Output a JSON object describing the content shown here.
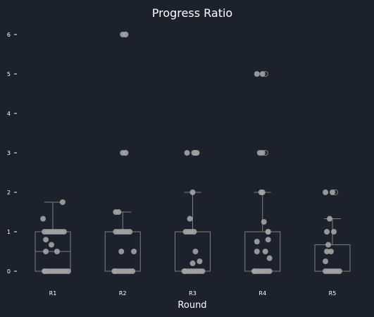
{
  "chart_data": {
    "type": "box",
    "title": "Progress Ratio",
    "xlabel": "Round",
    "ylabel": "",
    "ylim": [
      -0.25,
      6.3
    ],
    "yticks": [
      "0",
      "1",
      "2",
      "3",
      "4",
      "5",
      "6"
    ],
    "grid": false,
    "legend": "none",
    "colors": {
      "background": "#1c212c",
      "box": "#808080",
      "point": "#a3a3a3",
      "text": "#ffffff"
    },
    "categories": [
      "R1",
      "R2",
      "R3",
      "R4",
      "R5"
    ],
    "boxes": [
      {
        "q1": 0,
        "median": 0.5,
        "q3": 1,
        "whisker_low": 0,
        "whisker_high": 1.75,
        "outliers": []
      },
      {
        "q1": 0,
        "median": 0,
        "q3": 1,
        "whisker_low": 0,
        "whisker_high": 1.5,
        "outliers": [
          3,
          6
        ]
      },
      {
        "q1": 0,
        "median": 0,
        "q3": 1,
        "whisker_low": 0,
        "whisker_high": 2,
        "outliers": [
          3
        ]
      },
      {
        "q1": 0,
        "median": 0,
        "q3": 1,
        "whisker_low": 0,
        "whisker_high": 2,
        "outliers": [
          3,
          5
        ]
      },
      {
        "q1": 0,
        "median": 0,
        "q3": 0.67,
        "whisker_low": 0,
        "whisker_high": 1.33,
        "outliers": [
          2
        ]
      }
    ],
    "points": [
      [
        [
          -0.1,
          0
        ],
        [
          -0.06,
          0
        ],
        [
          -0.02,
          0
        ],
        [
          0.02,
          0
        ],
        [
          0.06,
          0
        ],
        [
          0.1,
          0
        ],
        [
          0.14,
          0
        ],
        [
          0.18,
          0
        ],
        [
          0.22,
          0
        ],
        [
          -0.12,
          0
        ],
        [
          -0.1,
          0.5
        ],
        [
          0.06,
          0.5
        ],
        [
          -0.02,
          0.67
        ],
        [
          -0.1,
          0.8
        ],
        [
          -0.12,
          1
        ],
        [
          -0.08,
          1
        ],
        [
          -0.04,
          1
        ],
        [
          0,
          1
        ],
        [
          0.04,
          1
        ],
        [
          0.08,
          1
        ],
        [
          0.12,
          1
        ],
        [
          0.16,
          1
        ],
        [
          -0.14,
          1.33
        ],
        [
          0.14,
          1.75
        ]
      ],
      [
        [
          -0.1,
          0
        ],
        [
          -0.06,
          0
        ],
        [
          -0.02,
          0
        ],
        [
          0.02,
          0
        ],
        [
          0.06,
          0
        ],
        [
          0.1,
          0
        ],
        [
          -0.12,
          0
        ],
        [
          0.14,
          0
        ],
        [
          -0.02,
          0.5
        ],
        [
          0.16,
          0.5
        ],
        [
          -0.1,
          1
        ],
        [
          -0.06,
          1
        ],
        [
          -0.02,
          1
        ],
        [
          0.02,
          1
        ],
        [
          0.06,
          1
        ],
        [
          0.1,
          1
        ],
        [
          -0.1,
          1.5
        ],
        [
          -0.06,
          1.5
        ],
        [
          0,
          3
        ],
        [
          0.04,
          3
        ],
        [
          0,
          6
        ],
        [
          0.04,
          6
        ]
      ],
      [
        [
          -0.1,
          0
        ],
        [
          -0.06,
          0
        ],
        [
          -0.02,
          0
        ],
        [
          0.02,
          0
        ],
        [
          0.06,
          0
        ],
        [
          0.1,
          0
        ],
        [
          0.14,
          0
        ],
        [
          -0.12,
          0
        ],
        [
          0,
          0.2
        ],
        [
          0.1,
          0.25
        ],
        [
          0.04,
          0.5
        ],
        [
          -0.1,
          1
        ],
        [
          -0.06,
          1
        ],
        [
          -0.02,
          1
        ],
        [
          0.02,
          1
        ],
        [
          -0.04,
          1.33
        ],
        [
          0,
          2
        ],
        [
          -0.08,
          3
        ],
        [
          0.02,
          3
        ],
        [
          0.06,
          3
        ]
      ],
      [
        [
          -0.1,
          0
        ],
        [
          -0.06,
          0
        ],
        [
          -0.02,
          0
        ],
        [
          0.02,
          0
        ],
        [
          0.06,
          0
        ],
        [
          0.1,
          0
        ],
        [
          -0.12,
          0
        ],
        [
          0.1,
          0.33
        ],
        [
          -0.08,
          0.5
        ],
        [
          0.04,
          0.5
        ],
        [
          -0.08,
          0.75
        ],
        [
          0.08,
          0.8
        ],
        [
          0.08,
          1
        ],
        [
          0.08,
          1
        ],
        [
          0.02,
          1.25
        ],
        [
          -0.02,
          2
        ],
        [
          0,
          2
        ],
        [
          -0.04,
          3
        ],
        [
          0,
          3
        ],
        [
          -0.08,
          5
        ],
        [
          0,
          5
        ]
      ],
      [
        [
          -0.1,
          0
        ],
        [
          -0.06,
          0
        ],
        [
          -0.02,
          0
        ],
        [
          0.02,
          0
        ],
        [
          0.06,
          0
        ],
        [
          0.1,
          0
        ],
        [
          -0.1,
          0.25
        ],
        [
          -0.08,
          0.5
        ],
        [
          -0.02,
          0.5
        ],
        [
          -0.06,
          0.67
        ],
        [
          -0.08,
          1
        ],
        [
          0.02,
          1
        ],
        [
          -0.04,
          1.33
        ],
        [
          -0.1,
          2
        ],
        [
          0,
          2
        ]
      ]
    ]
  }
}
